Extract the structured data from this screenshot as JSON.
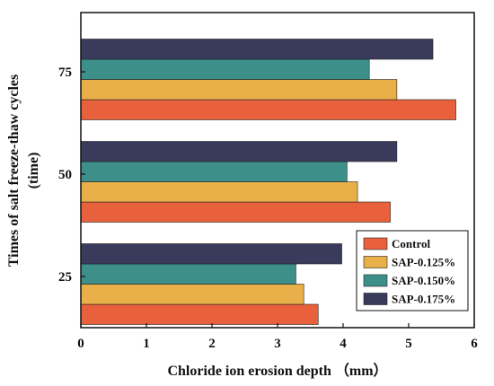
{
  "chart_data": {
    "type": "bar",
    "orientation": "horizontal",
    "categories": [
      "25",
      "50",
      "75"
    ],
    "series": [
      {
        "name": "Control",
        "color": "#E8603C",
        "values": [
          3.62,
          4.72,
          5.72
        ]
      },
      {
        "name": "SAP-0.125%",
        "color": "#E9B04A",
        "values": [
          3.4,
          4.22,
          4.82
        ]
      },
      {
        "name": "SAP-0.150%",
        "color": "#3C9089",
        "values": [
          3.28,
          4.06,
          4.4
        ]
      },
      {
        "name": "SAP-0.175%",
        "color": "#3A3A5C",
        "values": [
          3.98,
          4.82,
          5.37
        ]
      }
    ],
    "xlabel": "Chloride ion erosion depth （mm）",
    "ylabel_line1": "Times of salt freeze-thaw cycles",
    "ylabel_line2": "(time)",
    "xlim": [
      0,
      6
    ],
    "x_ticks": [
      "0",
      "1",
      "2",
      "3",
      "4",
      "5",
      "6"
    ],
    "legend_position": "lower-right",
    "grid": false
  }
}
